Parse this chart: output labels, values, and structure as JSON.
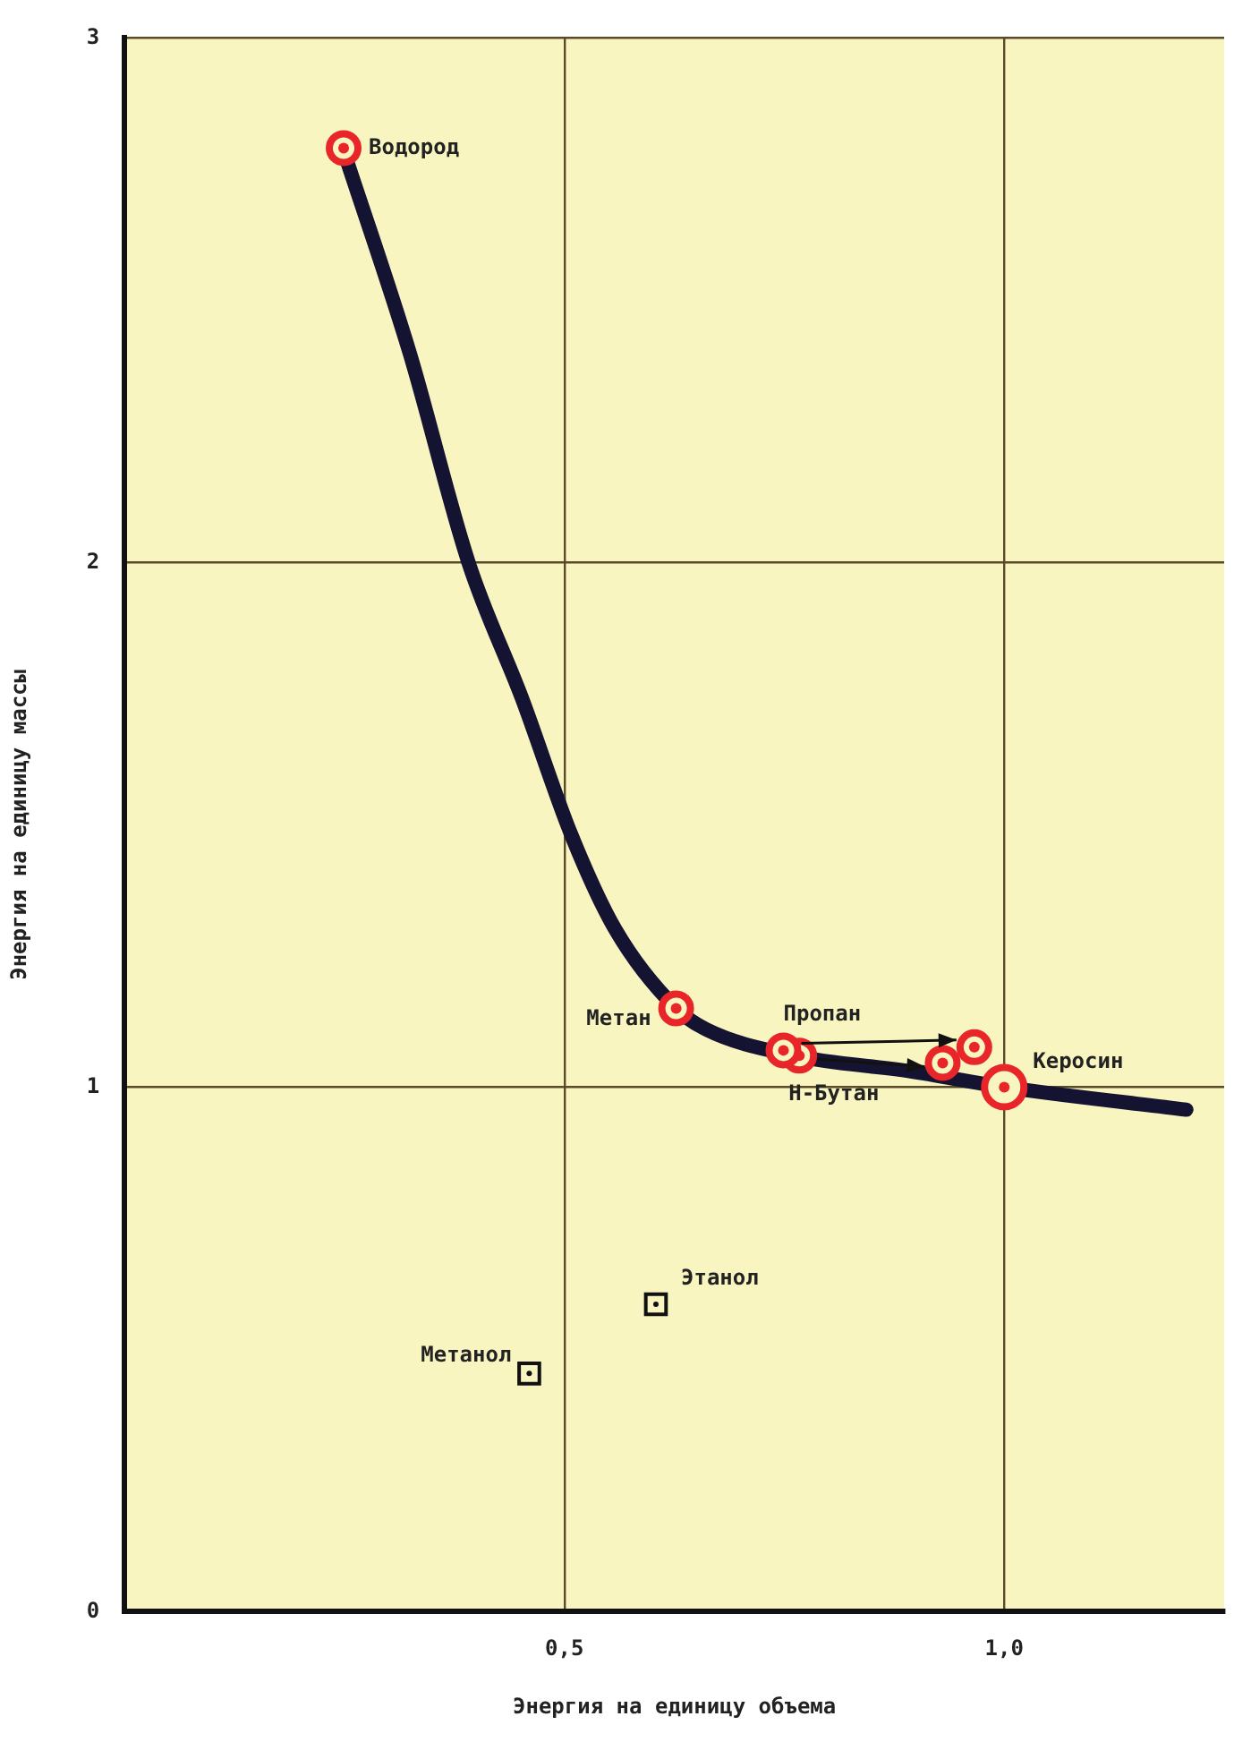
{
  "chart_data": {
    "type": "scatter",
    "xlabel": "Энергия на единицу объема",
    "ylabel": "Энергия на единицу массы",
    "xlim": [
      0,
      1.25
    ],
    "ylim": [
      0,
      3
    ],
    "xticks": [
      {
        "value": 0.5,
        "label": "0,5"
      },
      {
        "value": 1,
        "label": "1,0"
      }
    ],
    "yticks": [
      0,
      1,
      2,
      3
    ],
    "grid": true,
    "legend": false,
    "series": [
      {
        "type": "line",
        "color": "#141432",
        "marker": "none",
        "x": [
          0.249,
          0.324,
          0.391,
          0.452,
          0.508,
          0.558,
          0.627,
          0.661,
          0.761,
          0.894,
          1.0,
          1.207
        ],
        "values": [
          2.785,
          2.4,
          2.0,
          1.74,
          1.48,
          1.3,
          1.15,
          1.11,
          1.06,
          1.03,
          1.0,
          0.957
        ]
      },
      {
        "name": "Водород",
        "color": "#e8262a",
        "marker": "circle",
        "x": [
          0.249
        ],
        "values": [
          2.79
        ]
      },
      {
        "name": "Метан",
        "color": "#e8262a",
        "marker": "circle",
        "x": [
          0.627
        ],
        "values": [
          1.15
        ]
      },
      {
        "name": "Пропан",
        "color": "#e8262a",
        "marker": "circle",
        "x": [
          0.749,
          0.966
        ],
        "values": [
          1.07,
          1.076
        ]
      },
      {
        "name": "Н-Бутан",
        "color": "#e8262a",
        "marker": "circle",
        "x": [
          0.767,
          0.93
        ],
        "values": [
          1.06,
          1.046
        ]
      },
      {
        "name": "Керосин",
        "color": "#e8262a",
        "marker": "circle",
        "x": [
          1.0
        ],
        "values": [
          1.0
        ]
      },
      {
        "name": "Этанол",
        "color": "#111111",
        "marker": "square",
        "x": [
          0.604
        ],
        "values": [
          0.586
        ]
      },
      {
        "name": "Метанол",
        "color": "#111111",
        "marker": "square",
        "x": [
          0.46
        ],
        "values": [
          0.454
        ]
      }
    ]
  }
}
